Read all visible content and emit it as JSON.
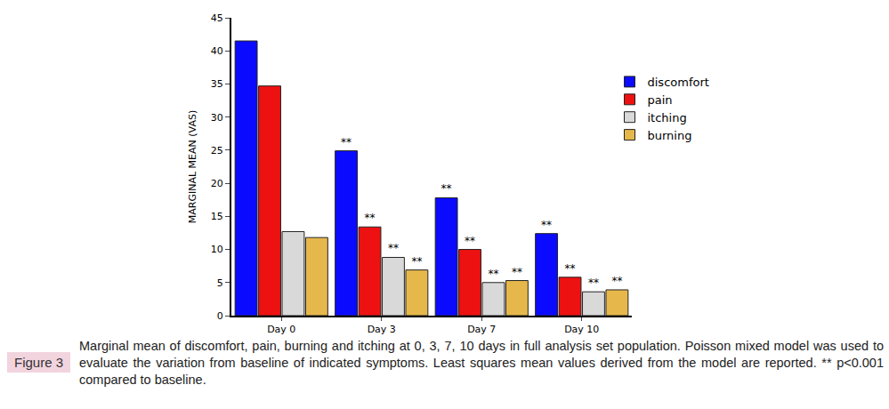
{
  "chart_data": {
    "type": "bar",
    "y_label": "MARGINAL MEAN (VAS)",
    "categories": [
      "Day 0",
      "Day 3",
      "Day 7",
      "Day 10"
    ],
    "series": [
      {
        "name": "discomfort",
        "color": "#0a0aff",
        "values": [
          41.5,
          24.9,
          17.8,
          12.4
        ],
        "annotations": [
          null,
          "**",
          "**",
          "**"
        ]
      },
      {
        "name": "pain",
        "color": "#ee1111",
        "values": [
          34.7,
          13.4,
          10.0,
          5.8
        ],
        "annotations": [
          null,
          "**",
          "**",
          "**"
        ]
      },
      {
        "name": "itching",
        "color": "#d9d9d9",
        "values": [
          12.7,
          8.8,
          5.0,
          3.6
        ],
        "annotations": [
          null,
          "**",
          "**",
          "**"
        ]
      },
      {
        "name": "burning",
        "color": "#e6b84c",
        "values": [
          11.8,
          6.9,
          5.3,
          3.9
        ],
        "annotations": [
          null,
          "**",
          "**",
          "**"
        ]
      }
    ],
    "ylim": [
      0,
      45
    ],
    "yticks": [
      0,
      5,
      10,
      15,
      20,
      25,
      30,
      35,
      40,
      45
    ],
    "grid": false,
    "legend": "upper right"
  },
  "caption": {
    "label": "Figure 3",
    "text": "Marginal mean of discomfort, pain, burning and itching at 0, 3, 7, 10 days in full analysis set population. Poisson mixed model was used to evaluate the variation from baseline of indicated symptoms. Least squares mean values derived from the model are reported. ** p<0.001 compared to baseline."
  }
}
